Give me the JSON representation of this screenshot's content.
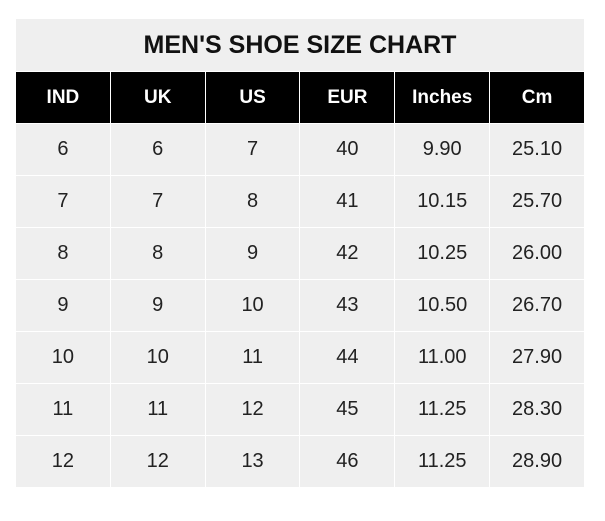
{
  "title": "MEN'S SHOE SIZE CHART",
  "headers": [
    "IND",
    "UK",
    "US",
    "EUR",
    "Inches",
    "Cm"
  ],
  "rows": [
    [
      "6",
      "6",
      "7",
      "40",
      "9.90",
      "25.10"
    ],
    [
      "7",
      "7",
      "8",
      "41",
      "10.15",
      "25.70"
    ],
    [
      "8",
      "8",
      "9",
      "42",
      "10.25",
      "26.00"
    ],
    [
      "9",
      "9",
      "10",
      "43",
      "10.50",
      "26.70"
    ],
    [
      "10",
      "10",
      "11",
      "44",
      "11.00",
      "27.90"
    ],
    [
      "11",
      "11",
      "12",
      "45",
      "11.25",
      "28.30"
    ],
    [
      "12",
      "12",
      "13",
      "46",
      "11.25",
      "28.90"
    ]
  ]
}
